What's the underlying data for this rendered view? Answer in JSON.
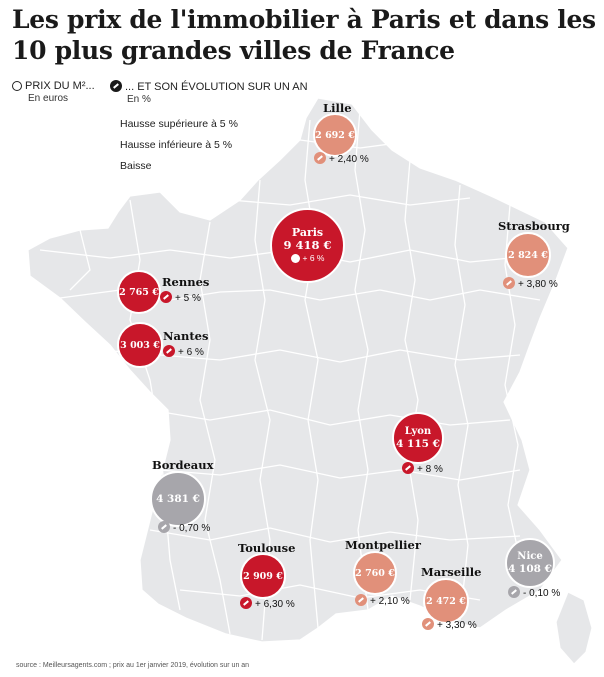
{
  "title": "Les prix de l'immobilier à Paris et dans les 10 plus grandes villes de France",
  "legend": {
    "price_label": "PRIX DU M²...",
    "price_unit": "En euros",
    "evolution_label": "... ET SON ÉVOLUTION SUR UN AN",
    "evolution_unit": "En %",
    "categories": [
      {
        "label": "Hausse supérieure à 5 %",
        "color": "#c8172a"
      },
      {
        "label": "Hausse inférieure à 5 %",
        "color": "#e1907a"
      },
      {
        "label": "Baisse",
        "color": "#a7a6ab"
      }
    ]
  },
  "cities": [
    {
      "name": "Lille",
      "price": "2 692 €",
      "evolution": "+ 2,40 %",
      "category": "salmon"
    },
    {
      "name": "Paris",
      "price": "9 418 €",
      "evolution": "+ 6 %",
      "category": "red"
    },
    {
      "name": "Strasbourg",
      "price": "2 824 €",
      "evolution": "+ 3,80 %",
      "category": "salmon"
    },
    {
      "name": "Rennes",
      "price": "2 765 €",
      "evolution": "+ 5 %",
      "category": "red"
    },
    {
      "name": "Nantes",
      "price": "3 003 €",
      "evolution": "+ 6 %",
      "category": "red"
    },
    {
      "name": "Lyon",
      "price": "4 115 €",
      "evolution": "+ 8 %",
      "category": "red"
    },
    {
      "name": "Bordeaux",
      "price": "4 381 €",
      "evolution": "- 0,70 %",
      "category": "grey"
    },
    {
      "name": "Toulouse",
      "price": "2 909 €",
      "evolution": "+ 6,30 %",
      "category": "red"
    },
    {
      "name": "Montpellier",
      "price": "2 760 €",
      "evolution": "+ 2,10 %",
      "category": "salmon"
    },
    {
      "name": "Marseille",
      "price": "2 472 €",
      "evolution": "+ 3,30 %",
      "category": "salmon"
    },
    {
      "name": "Nice",
      "price": "4 108 €",
      "evolution": "- 0,10 %",
      "category": "grey"
    }
  ],
  "colors": {
    "red": "#c8172a",
    "salmon": "#e1907a",
    "grey": "#a7a6ab",
    "land": "#e6e7e9",
    "borders": "#ffffff"
  },
  "source": "source : Meilleursagents.com ; prix au 1er janvier 2019, évolution sur un an"
}
